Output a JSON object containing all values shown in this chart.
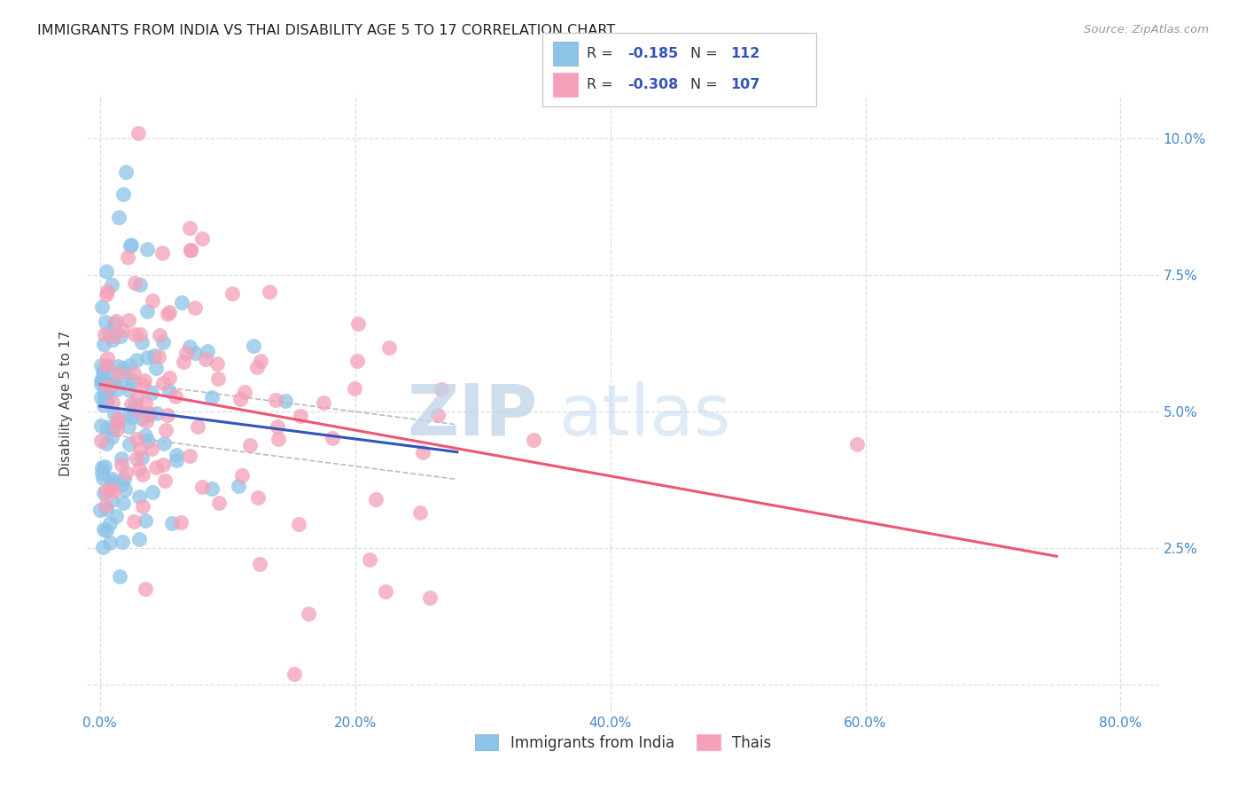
{
  "title": "IMMIGRANTS FROM INDIA VS THAI DISABILITY AGE 5 TO 17 CORRELATION CHART",
  "source": "Source: ZipAtlas.com",
  "xlabel_ticks": [
    "0.0%",
    "20.0%",
    "40.0%",
    "60.0%",
    "80.0%"
  ],
  "xlabel_tick_vals": [
    0.0,
    0.2,
    0.4,
    0.6,
    0.8
  ],
  "ylabel": "Disability Age 5 to 17",
  "ylabel_ticks": [
    "",
    "2.5%",
    "5.0%",
    "7.5%",
    "10.0%"
  ],
  "ylabel_tick_vals": [
    0.0,
    0.025,
    0.05,
    0.075,
    0.1
  ],
  "xlim": [
    -0.01,
    0.83
  ],
  "ylim": [
    -0.005,
    0.108
  ],
  "india_R": -0.185,
  "india_N": 112,
  "thai_R": -0.308,
  "thai_N": 107,
  "india_color": "#8DC4E8",
  "thai_color": "#F4A0B8",
  "india_line_color": "#3355BB",
  "thai_line_color": "#EE5577",
  "conf_band_color": "#BBBBBB",
  "background_color": "#FFFFFF",
  "grid_color": "#DDDDDD",
  "title_color": "#222222",
  "source_color": "#999999",
  "tick_color": "#4488CC",
  "watermark_zip_color": "#BCCDE0",
  "watermark_atlas_color": "#C8D8E8",
  "india_seed": 42,
  "thai_seed": 77,
  "india_line_intercept": 0.051,
  "india_line_slope": -0.03,
  "thai_line_intercept": 0.055,
  "thai_line_slope": -0.042
}
